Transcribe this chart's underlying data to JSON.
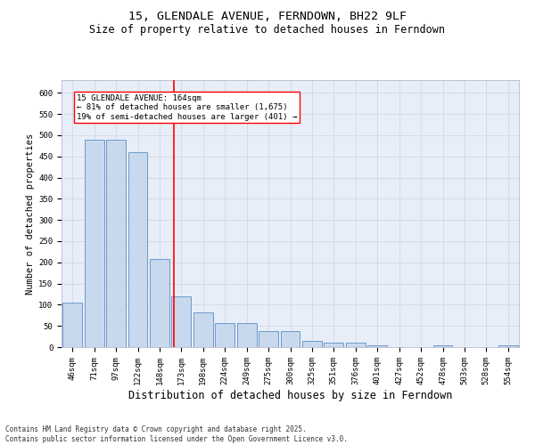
{
  "title": "15, GLENDALE AVENUE, FERNDOWN, BH22 9LF",
  "subtitle": "Size of property relative to detached houses in Ferndown",
  "xlabel": "Distribution of detached houses by size in Ferndown",
  "ylabel": "Number of detached properties",
  "footer_line1": "Contains HM Land Registry data © Crown copyright and database right 2025.",
  "footer_line2": "Contains public sector information licensed under the Open Government Licence v3.0.",
  "annotation_line1": "15 GLENDALE AVENUE: 164sqm",
  "annotation_line2": "← 81% of detached houses are smaller (1,675)",
  "annotation_line3": "19% of semi-detached houses are larger (401) →",
  "categories": [
    "46sqm",
    "71sqm",
    "97sqm",
    "122sqm",
    "148sqm",
    "173sqm",
    "198sqm",
    "224sqm",
    "249sqm",
    "275sqm",
    "300sqm",
    "325sqm",
    "351sqm",
    "376sqm",
    "401sqm",
    "427sqm",
    "452sqm",
    "478sqm",
    "503sqm",
    "528sqm",
    "554sqm"
  ],
  "values": [
    105,
    490,
    490,
    460,
    208,
    120,
    82,
    57,
    57,
    38,
    38,
    14,
    10,
    10,
    5,
    0,
    0,
    5,
    0,
    0,
    5
  ],
  "bar_color": "#c8d9ee",
  "bar_edge_color": "#5b8ec4",
  "grid_color": "#d0d8e8",
  "background_color": "#e8eef8",
  "ylim": [
    0,
    630
  ],
  "yticks": [
    0,
    50,
    100,
    150,
    200,
    250,
    300,
    350,
    400,
    450,
    500,
    550,
    600
  ],
  "title_fontsize": 9.5,
  "subtitle_fontsize": 8.5,
  "axis_label_fontsize": 7.5,
  "tick_fontsize": 6.5,
  "annotation_fontsize": 6.5,
  "footer_fontsize": 5.5
}
